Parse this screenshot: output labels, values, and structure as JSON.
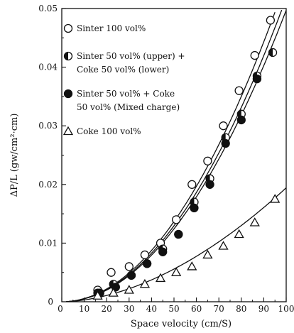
{
  "chart_data": {
    "type": "scatter",
    "title": "",
    "xlabel": "Space velocity (cm/S)",
    "ylabel": "ΔP/L (gw/cm²·cm)",
    "xlim": [
      0,
      100
    ],
    "ylim": [
      0,
      0.05
    ],
    "x_ticks": [
      0,
      10,
      20,
      30,
      40,
      50,
      60,
      70,
      80,
      90,
      100
    ],
    "y_ticks": [
      0.01,
      0.02,
      0.03,
      0.04,
      0.05
    ],
    "y_tick_labels": [
      "0.01",
      "0.02",
      "0.03",
      "0.04",
      "0.05"
    ],
    "x_zero_label": "0",
    "y_zero_label": "0",
    "grid": false,
    "legend_position": "top-left",
    "series": [
      {
        "name": "Sinter 100 vol%",
        "marker": "open-circle",
        "x": [
          16,
          22,
          30,
          37,
          44,
          51,
          58,
          65,
          72,
          79,
          86,
          93
        ],
        "y": [
          0.002,
          0.005,
          0.006,
          0.008,
          0.01,
          0.014,
          0.02,
          0.024,
          0.03,
          0.036,
          0.042,
          0.048
        ],
        "fit": {
          "a": 5.47e-06,
          "n": 2.0
        }
      },
      {
        "name_lines": [
          "Sinter 50 vol% (upper) +",
          "Coke 50 vol% (lower)"
        ],
        "marker": "half-filled-circle",
        "x": [
          16,
          23,
          31,
          38,
          45,
          52,
          59,
          66,
          73,
          80,
          87,
          94
        ],
        "y": [
          0.0015,
          0.003,
          0.0045,
          0.0065,
          0.009,
          0.0115,
          0.017,
          0.021,
          0.028,
          0.032,
          0.0385,
          0.0425
        ],
        "fit": {
          "a": 5.18e-06,
          "n": 2.0
        }
      },
      {
        "name_lines": [
          "Sinter 50 vol% + Coke",
          "50 vol% (Mixed charge)"
        ],
        "marker": "filled-circle",
        "x": [
          17,
          24,
          31,
          38,
          45,
          52,
          59,
          66,
          73,
          80,
          87
        ],
        "y": [
          0.0015,
          0.0025,
          0.0045,
          0.0065,
          0.0085,
          0.0115,
          0.016,
          0.02,
          0.027,
          0.031,
          0.038
        ],
        "fit": {
          "a": 4.97e-06,
          "n": 2.0
        }
      },
      {
        "name": "Coke 100 vol%",
        "marker": "open-triangle",
        "x": [
          16,
          23,
          30,
          37,
          44,
          51,
          58,
          65,
          72,
          79,
          86,
          95
        ],
        "y": [
          0.001,
          0.0015,
          0.002,
          0.003,
          0.004,
          0.005,
          0.006,
          0.008,
          0.0095,
          0.0115,
          0.0135,
          0.0175
        ],
        "fit": {
          "a": 4.88e-06,
          "n": 1.8
        }
      }
    ]
  }
}
